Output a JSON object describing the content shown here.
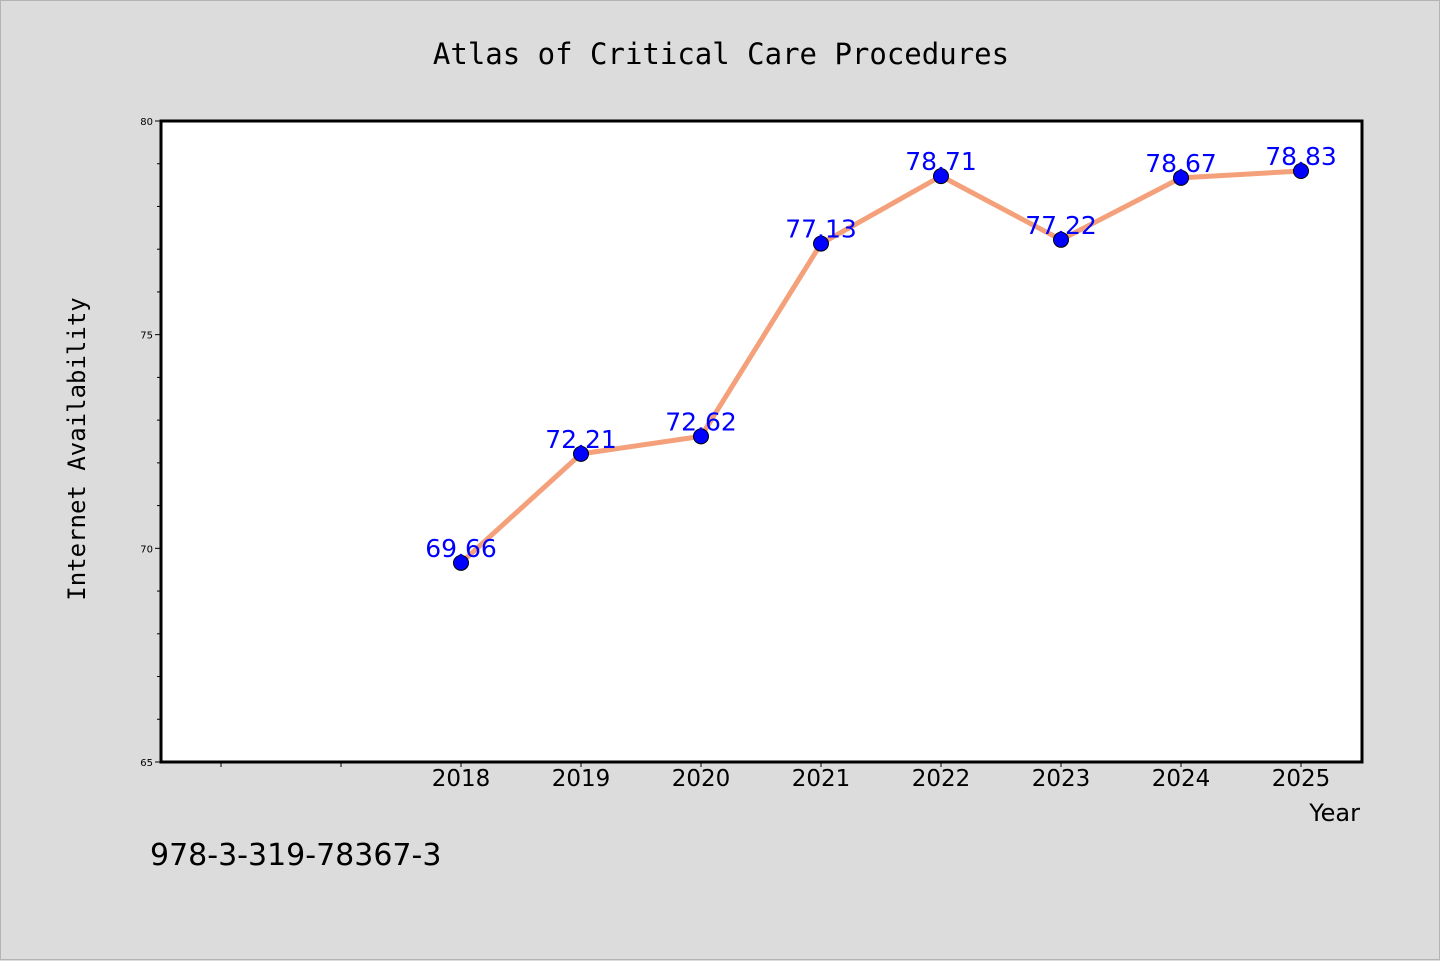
{
  "chart_data": {
    "type": "line",
    "title": "Atlas of Critical Care Procedures",
    "xlabel": "Year",
    "ylabel": "Internet Availability",
    "categories": [
      "2018",
      "2019",
      "2020",
      "2021",
      "2022",
      "2023",
      "2024",
      "2025"
    ],
    "series": [
      {
        "values": [
          69.66,
          72.21,
          72.62,
          77.13,
          78.71,
          77.22,
          78.67,
          78.83
        ],
        "labels": [
          "69.66",
          "72.21",
          "72.62",
          "77.13",
          "78.71",
          "77.22",
          "78.67",
          "78.83"
        ],
        "line_color": "#f4a07a",
        "marker_color": "#0000ff",
        "label_color": "#0000ff"
      }
    ],
    "ylim": [
      65,
      80
    ],
    "yticks": [
      "65",
      "70",
      "75",
      "80"
    ],
    "grid": false,
    "legend": "none"
  },
  "footer": {
    "isbn": "978-3-319-78367-3"
  },
  "colors": {
    "background": "#dcdcdc",
    "plot_area": "#ffffff",
    "axis": "#000000"
  }
}
